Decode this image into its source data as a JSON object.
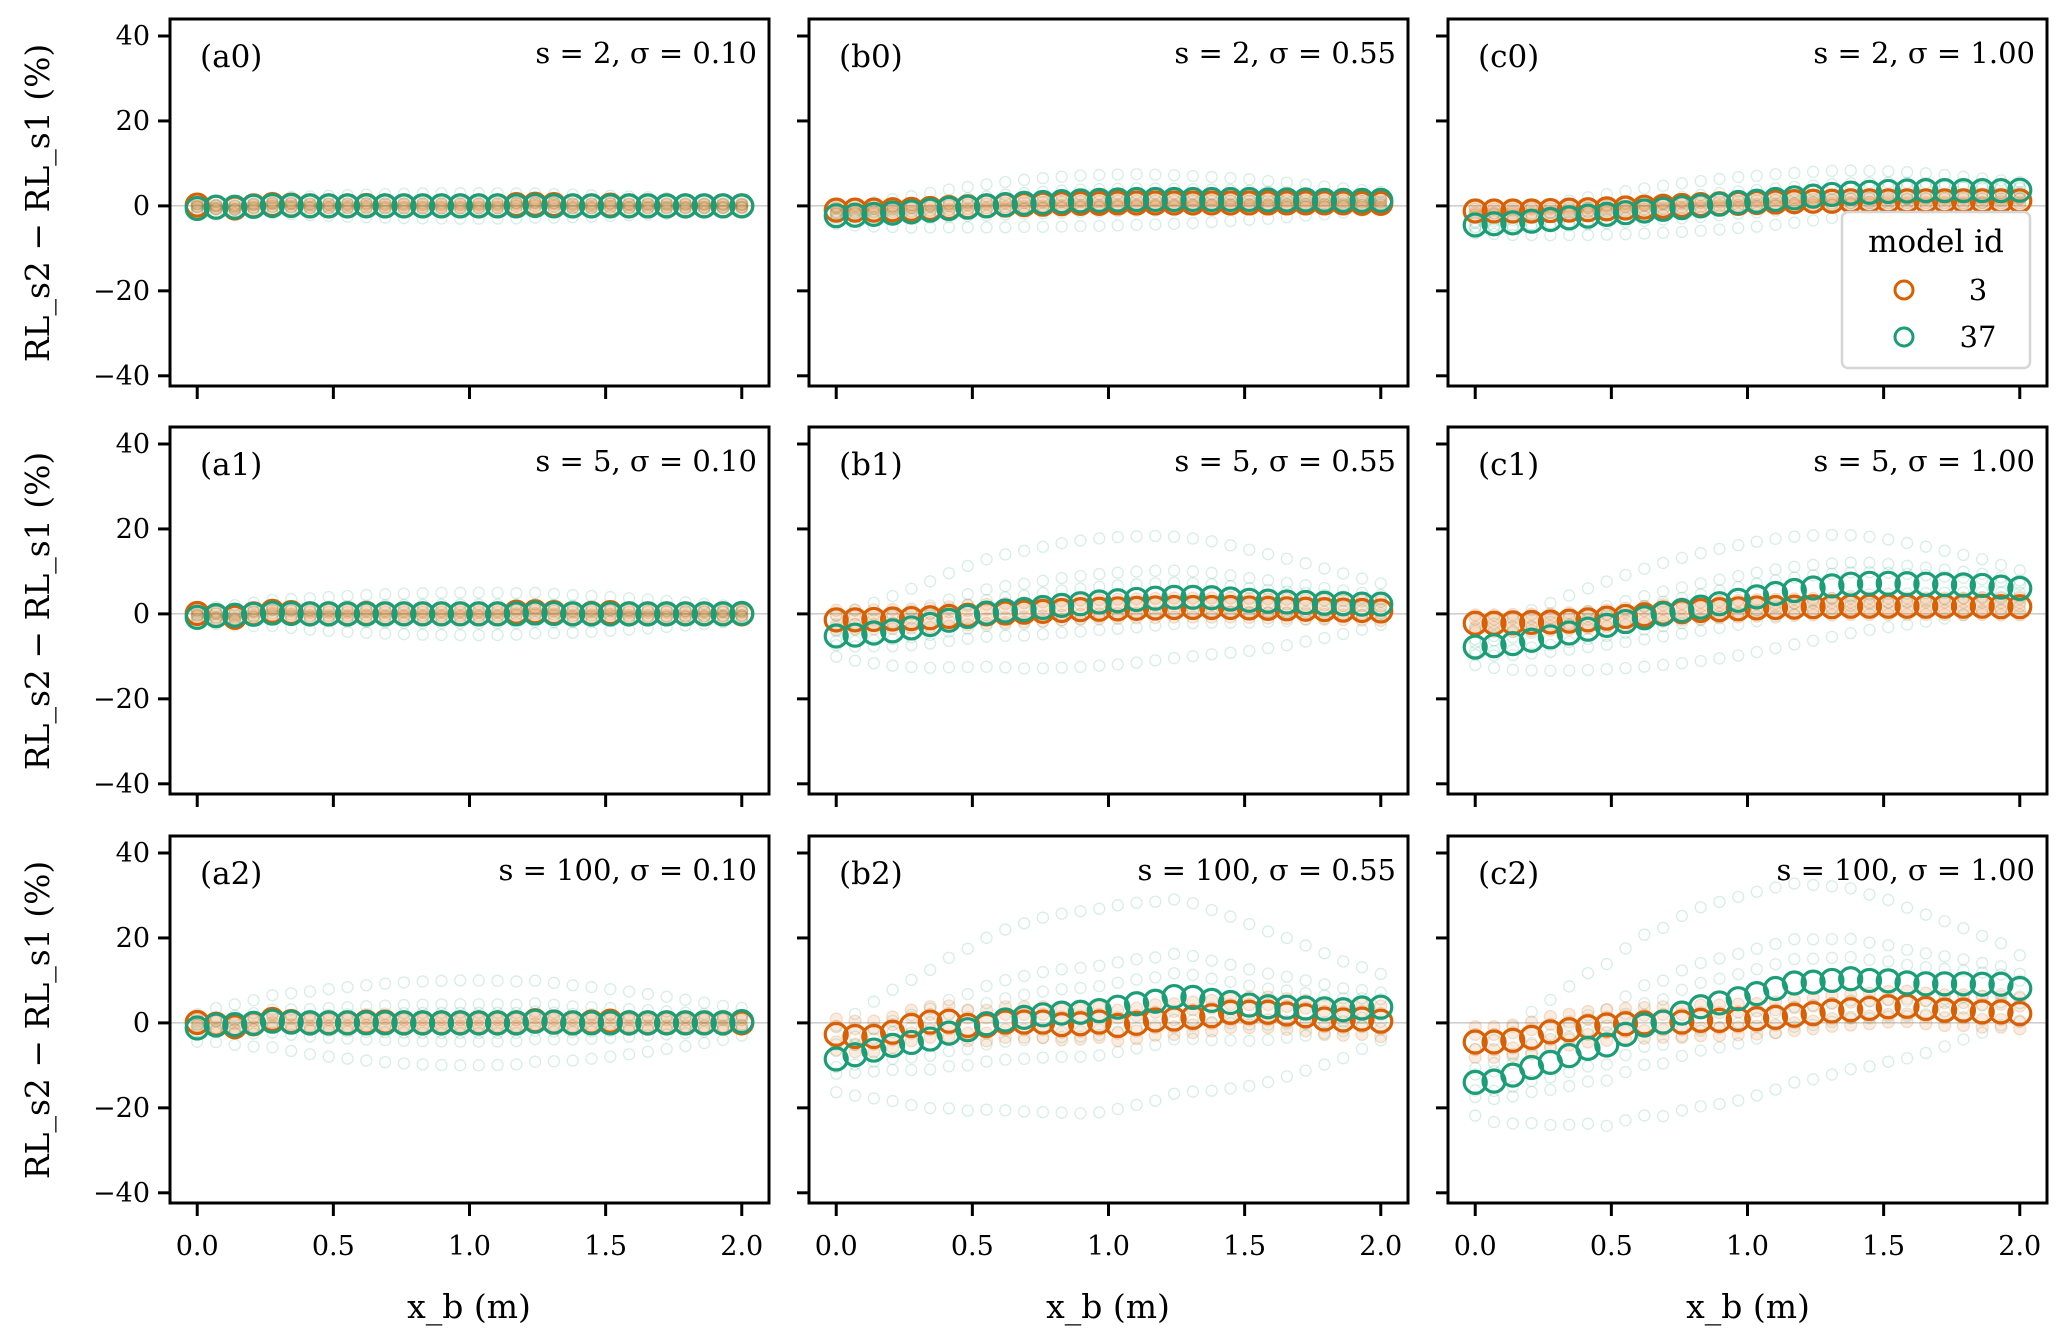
{
  "chart_data": {
    "type": "scatter",
    "figure_ylabel": "RL_s2 − RL_s1 (%)",
    "figure_xlabel": "x_b (m)",
    "xlim": [
      -0.1,
      2.1
    ],
    "ylim": [
      -42.4,
      44
    ],
    "xticks": [
      0.0,
      0.5,
      1.0,
      1.5,
      2.0
    ],
    "xtick_labels": [
      "0.0",
      "0.5",
      "1.0",
      "1.5",
      "2.0"
    ],
    "yticks": [
      40,
      20,
      0,
      -20,
      -40
    ],
    "ytick_labels": [
      "40",
      "20",
      "0",
      "−20",
      "−40"
    ],
    "zero_line": true,
    "n_points": 30,
    "x": [
      0.0,
      0.069,
      0.138,
      0.207,
      0.276,
      0.345,
      0.414,
      0.483,
      0.552,
      0.621,
      0.69,
      0.759,
      0.828,
      0.897,
      0.966,
      1.034,
      1.103,
      1.172,
      1.241,
      1.31,
      1.379,
      1.448,
      1.517,
      1.586,
      1.655,
      1.724,
      1.793,
      1.862,
      1.931,
      2.0
    ],
    "legend": {
      "title": "model id",
      "placement": "lower-right of panel c0",
      "entries": [
        {
          "label": "3",
          "color": "#d95f02"
        },
        {
          "label": "37",
          "color": "#1b9e77"
        }
      ]
    },
    "panels": [
      {
        "tag": "(a0)",
        "params": "s = 2, σ = 0.10",
        "row": 0,
        "col": 0,
        "faint_spread": 3,
        "series": [
          {
            "name": "3",
            "values": [
              0.2,
              -0.3,
              -0.5,
              0,
              0.3,
              0.2,
              0,
              0,
              0,
              0.1,
              0,
              0,
              0,
              0,
              0,
              0,
              0,
              0.3,
              0.4,
              0.3,
              0,
              0,
              0.2,
              0,
              0,
              0,
              0,
              0,
              0,
              0
            ]
          },
          {
            "name": "37",
            "values": [
              -0.6,
              -0.3,
              -0.3,
              -0.1,
              0.1,
              0.1,
              0,
              0,
              0,
              0,
              0,
              0,
              0,
              0,
              0,
              0,
              0,
              0,
              0.1,
              0,
              0,
              0,
              0,
              0,
              0,
              0,
              0,
              0,
              0,
              0
            ]
          }
        ]
      },
      {
        "tag": "(b0)",
        "params": "s = 2, σ = 0.55",
        "row": 0,
        "col": 1,
        "faint_spread": 6,
        "series": [
          {
            "name": "3",
            "values": [
              -1.0,
              -1.0,
              -1.0,
              -0.9,
              -0.8,
              -0.6,
              -0.4,
              -0.2,
              0,
              0.2,
              0.3,
              0.4,
              0.5,
              0.6,
              0.6,
              0.7,
              0.7,
              0.7,
              0.7,
              0.7,
              0.7,
              0.7,
              0.7,
              0.7,
              0.7,
              0.7,
              0.7,
              0.7,
              0.6,
              0.6
            ]
          },
          {
            "name": "37",
            "values": [
              -2.3,
              -2.2,
              -2.0,
              -1.7,
              -1.4,
              -1.0,
              -0.6,
              -0.3,
              0,
              0.3,
              0.6,
              0.8,
              1.0,
              1.2,
              1.3,
              1.4,
              1.5,
              1.5,
              1.5,
              1.5,
              1.5,
              1.5,
              1.5,
              1.4,
              1.4,
              1.4,
              1.3,
              1.3,
              1.3,
              1.3
            ]
          }
        ]
      },
      {
        "tag": "(c0)",
        "params": "s = 2, σ = 1.00",
        "row": 0,
        "col": 2,
        "faint_spread": 6,
        "series": [
          {
            "name": "3",
            "values": [
              -1.2,
              -1.2,
              -1.2,
              -1.2,
              -1.1,
              -1.0,
              -0.9,
              -0.7,
              -0.5,
              -0.3,
              -0.1,
              0.1,
              0.3,
              0.5,
              0.6,
              0.8,
              0.9,
              1.0,
              1.1,
              1.1,
              1.2,
              1.2,
              1.2,
              1.2,
              1.2,
              1.2,
              1.2,
              1.2,
              1.2,
              1.2
            ]
          },
          {
            "name": "37",
            "values": [
              -4.5,
              -4.2,
              -4.0,
              -3.6,
              -3.2,
              -2.8,
              -2.4,
              -2.0,
              -1.6,
              -1.2,
              -0.8,
              -0.4,
              0,
              0.4,
              0.8,
              1.1,
              1.5,
              1.9,
              2.3,
              2.7,
              3.0,
              3.2,
              3.4,
              3.5,
              3.6,
              3.6,
              3.6,
              3.6,
              3.6,
              3.7
            ]
          }
        ]
      },
      {
        "tag": "(a1)",
        "params": "s = 5, σ = 0.10",
        "row": 1,
        "col": 0,
        "faint_spread": 5,
        "series": [
          {
            "name": "3",
            "values": [
              0.1,
              -0.4,
              -0.8,
              0,
              0.6,
              0.3,
              0,
              0,
              0,
              0.1,
              0,
              0,
              0,
              0,
              0,
              0,
              0,
              0.4,
              0.5,
              0.3,
              0,
              0.1,
              0.3,
              0,
              0,
              0,
              0,
              0,
              0,
              0
            ]
          },
          {
            "name": "37",
            "values": [
              -0.8,
              -0.4,
              -0.3,
              -0.1,
              0.2,
              0.1,
              0,
              0,
              0,
              0,
              0,
              0,
              0,
              0,
              0,
              0,
              0,
              0,
              0.2,
              0.1,
              0,
              0,
              0,
              0,
              0,
              0,
              0,
              0,
              0,
              0.1
            ]
          }
        ]
      },
      {
        "tag": "(b1)",
        "params": "s = 5, σ = 0.55",
        "row": 1,
        "col": 1,
        "faint_spread": 15,
        "series": [
          {
            "name": "3",
            "values": [
              -1.4,
              -1.4,
              -1.3,
              -1.2,
              -1.1,
              -0.9,
              -0.6,
              -0.3,
              0,
              0.2,
              0.4,
              0.6,
              0.8,
              1.0,
              1.1,
              1.2,
              1.3,
              1.4,
              1.5,
              1.5,
              1.5,
              1.5,
              1.4,
              1.3,
              1.2,
              1.1,
              1.0,
              0.9,
              0.8,
              0.7
            ]
          },
          {
            "name": "37",
            "values": [
              -5.2,
              -5.0,
              -4.5,
              -4.0,
              -3.3,
              -2.5,
              -1.5,
              -0.6,
              0.2,
              0.7,
              1.0,
              1.5,
              2.0,
              2.4,
              2.8,
              3.1,
              3.4,
              3.7,
              3.9,
              3.9,
              3.8,
              3.5,
              3.2,
              3.0,
              2.8,
              2.7,
              2.5,
              2.4,
              2.3,
              2.3
            ]
          }
        ]
      },
      {
        "tag": "(c1)",
        "params": "s = 5, σ = 1.00",
        "row": 1,
        "col": 2,
        "faint_spread": 13,
        "series": [
          {
            "name": "3",
            "values": [
              -2.2,
              -2.2,
              -2.1,
              -2.0,
              -1.9,
              -1.7,
              -1.4,
              -1.0,
              -0.6,
              -0.2,
              0.2,
              0.5,
              0.8,
              1.0,
              1.2,
              1.4,
              1.5,
              1.6,
              1.7,
              1.7,
              1.8,
              1.8,
              1.8,
              1.8,
              1.8,
              1.8,
              1.8,
              1.8,
              1.7,
              1.7
            ]
          },
          {
            "name": "37",
            "values": [
              -7.8,
              -7.5,
              -7.0,
              -6.2,
              -5.4,
              -4.5,
              -3.6,
              -2.7,
              -1.8,
              -0.9,
              0,
              0.8,
              1.6,
              2.4,
              3.2,
              4.0,
              4.8,
              5.5,
              6.1,
              6.6,
              7.0,
              7.2,
              7.2,
              7.1,
              7.0,
              6.9,
              6.8,
              6.7,
              6.3,
              6.0
            ]
          }
        ]
      },
      {
        "tag": "(a2)",
        "params": "s = 100, σ = 0.10",
        "row": 2,
        "col": 0,
        "faint_spread": 10,
        "series": [
          {
            "name": "3",
            "values": [
              0.1,
              -0.3,
              -0.9,
              -0.2,
              0.8,
              0.3,
              0,
              0,
              0,
              0.2,
              0.2,
              0,
              0,
              0,
              0,
              0,
              0,
              0,
              0.5,
              0.2,
              0,
              0.2,
              0.4,
              0,
              0,
              0,
              0,
              0,
              0,
              0
            ]
          },
          {
            "name": "37",
            "values": [
              -1.2,
              -0.5,
              -0.4,
              -0.1,
              0.4,
              0.2,
              0,
              0,
              0,
              0,
              0,
              0,
              0,
              0,
              0,
              0,
              0,
              0,
              0.4,
              0.2,
              0,
              0,
              0,
              0,
              0,
              0,
              0,
              0,
              0,
              0.3
            ]
          }
        ]
      },
      {
        "tag": "(b2)",
        "params": "s = 100, σ = 0.55",
        "row": 2,
        "col": 1,
        "faint_spread": 24,
        "series": [
          {
            "name": "3",
            "values": [
              -2.7,
              -3.2,
              -3.2,
              -2.2,
              -0.6,
              0.2,
              0.4,
              -0.6,
              -0.6,
              0.2,
              0.2,
              0.2,
              -0.4,
              -0.2,
              0.2,
              -0.6,
              -0.1,
              0.7,
              0.9,
              1.3,
              1.7,
              2.5,
              2.5,
              2.5,
              2.1,
              1.7,
              0.9,
              0.7,
              0.9,
              0.4
            ]
          },
          {
            "name": "37",
            "values": [
              -8.5,
              -7.5,
              -6.4,
              -5.3,
              -4.6,
              -3.8,
              -2.4,
              -1.6,
              -0.2,
              0.7,
              1.3,
              1.9,
              2.3,
              2.5,
              2.9,
              3.7,
              4.5,
              5.1,
              6.2,
              6.0,
              5.3,
              4.8,
              4.2,
              3.8,
              3.7,
              3.5,
              3.3,
              3.1,
              3.5,
              3.7
            ]
          }
        ]
      },
      {
        "tag": "(c2)",
        "params": "s = 100, σ = 1.00",
        "row": 2,
        "col": 2,
        "faint_spread": 24,
        "series": [
          {
            "name": "3",
            "values": [
              -4.5,
              -4.5,
              -4.1,
              -3.4,
              -2.1,
              -1.6,
              -0.9,
              -0.5,
              -0.2,
              0,
              0.2,
              0.2,
              0.6,
              0.6,
              0.8,
              1.0,
              1.3,
              1.8,
              2.2,
              2.8,
              3.1,
              3.4,
              3.8,
              3.9,
              3.4,
              3.0,
              3.0,
              2.6,
              2.6,
              2.2
            ]
          },
          {
            "name": "37",
            "values": [
              -14.0,
              -13.7,
              -12.3,
              -10.5,
              -9.3,
              -7.7,
              -6.0,
              -5.2,
              -2.7,
              -0.5,
              0.2,
              2.3,
              3.8,
              4.7,
              5.7,
              6.9,
              8.1,
              9.4,
              9.6,
              10.0,
              10.4,
              10.0,
              9.9,
              9.4,
              9.2,
              9.2,
              9.2,
              9.1,
              9.1,
              8.1
            ]
          }
        ]
      }
    ]
  }
}
